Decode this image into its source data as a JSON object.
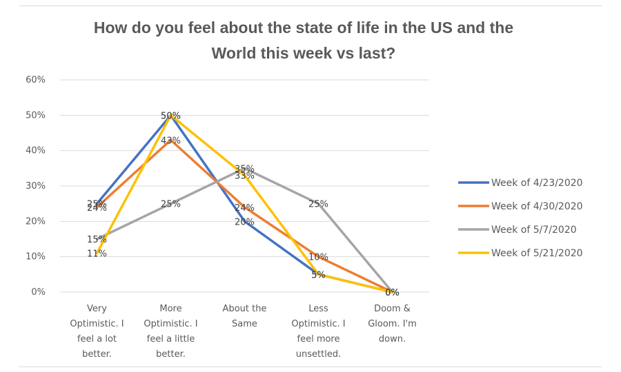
{
  "chart_data": {
    "type": "line",
    "title_lines": [
      "How do you feel about the state of life in the US and the",
      "World this week vs last?"
    ],
    "categories": [
      [
        "Very",
        "Optimistic. I",
        "feel a lot",
        "better."
      ],
      [
        "More",
        "Optimistic. I",
        "feel a little",
        "better."
      ],
      [
        "About the",
        "Same"
      ],
      [
        "Less",
        "Optimistic. I",
        "feel more",
        "unsettled."
      ],
      [
        "Doom &",
        "Gloom. I'm",
        "down."
      ]
    ],
    "ylim": [
      0,
      60
    ],
    "yticks": [
      "0%",
      "10%",
      "20%",
      "30%",
      "40%",
      "50%",
      "60%"
    ],
    "grid": true,
    "legend_position": "right",
    "series": [
      {
        "name": "Week of 4/23/2020",
        "color": "#4472c4",
        "values": [
          25,
          50,
          20,
          5,
          0
        ],
        "labels": [
          "25%",
          "50%",
          "20%",
          "5%",
          "0%"
        ]
      },
      {
        "name": "Week of 4/30/2020",
        "color": "#ed7d31",
        "values": [
          24,
          43,
          24,
          10,
          0
        ],
        "labels": [
          "24%",
          "43%",
          "24%",
          "10%",
          "0%"
        ]
      },
      {
        "name": "Week of 5/7/2020",
        "color": "#a5a5a5",
        "values": [
          15,
          25,
          35,
          25,
          0
        ],
        "labels": [
          "15%",
          "25%",
          "35%",
          "25%",
          "0%"
        ]
      },
      {
        "name": "Week of 5/21/2020",
        "color": "#ffc000",
        "values": [
          11,
          50,
          33,
          5,
          0
        ],
        "labels": [
          "11%",
          "50%",
          "33%",
          "5%",
          "0%"
        ]
      }
    ]
  }
}
